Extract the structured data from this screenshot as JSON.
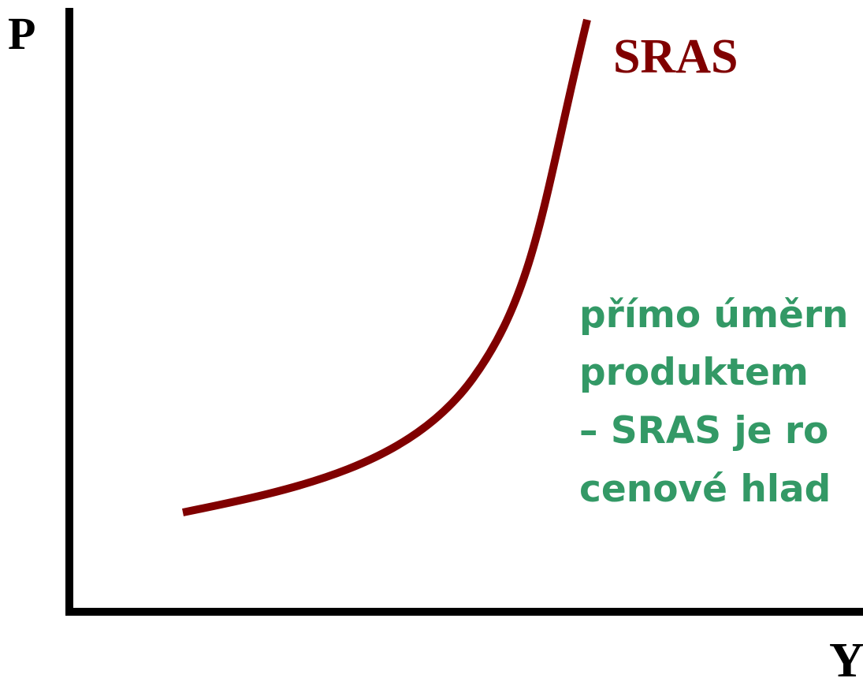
{
  "axes": {
    "y_label": "P",
    "x_label": "Y"
  },
  "curve": {
    "label": "SRAS"
  },
  "note": {
    "lines": [
      "přímo úměrn",
      "produktem",
      "– SRAS je ro",
      "cenové hlad"
    ]
  }
}
